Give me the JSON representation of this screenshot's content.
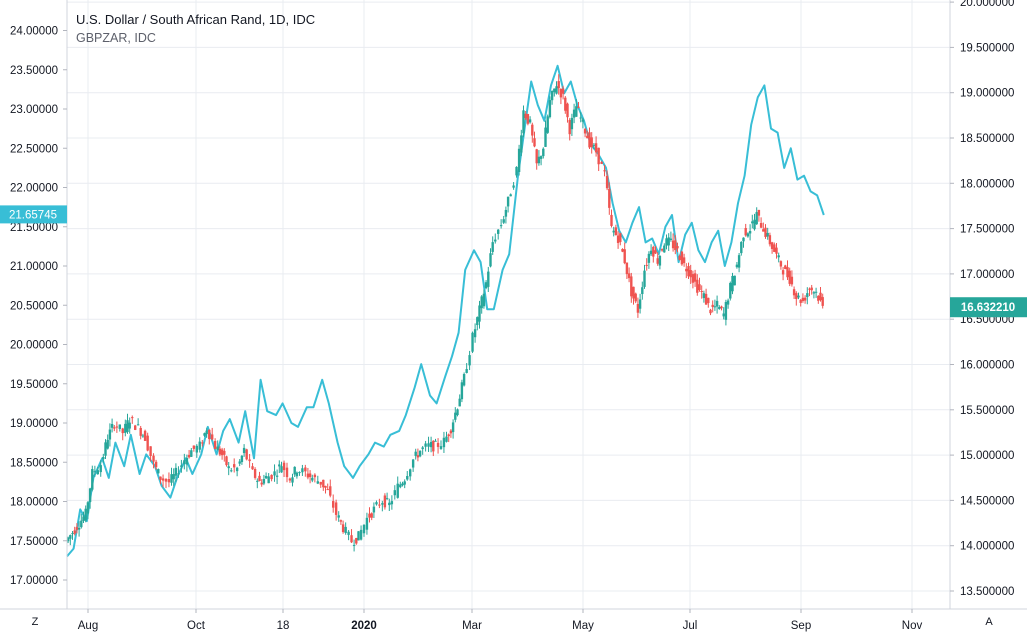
{
  "legend": {
    "title": "U.S. Dollar / South African Rand, 1D, IDC",
    "compare": "GBPZAR, IDC"
  },
  "buttons": {
    "left": "Z",
    "right": "A"
  },
  "colors": {
    "up": "#26a69a",
    "down": "#ef5350",
    "compare_line": "#38bed6",
    "grid": "#e9ecf1",
    "left_badge": "#38bed6",
    "right_badge": "#26a69a"
  },
  "chart_data": {
    "type": "line",
    "xlabels": [
      "Aug",
      "Oct",
      "18",
      "2020",
      "Mar",
      "May",
      "Jul",
      "Sep",
      "Nov"
    ],
    "x_bold": [
      "2020"
    ],
    "left_axis": {
      "ticks": [
        "17.00000",
        "17.50000",
        "18.00000",
        "18.50000",
        "19.00000",
        "19.50000",
        "20.00000",
        "20.50000",
        "21.00000",
        "21.50000",
        "22.00000",
        "22.50000",
        "23.00000",
        "23.50000",
        "24.00000"
      ],
      "ylim": [
        17.0,
        24.0
      ],
      "last_value": "21.65745",
      "last_value_num": 21.65745
    },
    "right_axis": {
      "ticks": [
        "13.500000",
        "14.000000",
        "14.500000",
        "15.000000",
        "15.500000",
        "16.000000",
        "16.500000",
        "17.000000",
        "17.500000",
        "18.000000",
        "18.500000",
        "19.000000",
        "19.500000",
        "20.000000"
      ],
      "ylim": [
        13.5,
        20.0
      ],
      "last_value": "16.632210",
      "last_value_num": 16.63221
    },
    "series": [
      {
        "name": "GBPZAR, IDC",
        "axis": "left",
        "style": "line",
        "points": [
          [
            0,
            17.3
          ],
          [
            3,
            17.4
          ],
          [
            6,
            17.9
          ],
          [
            9,
            17.75
          ],
          [
            12,
            18.3
          ],
          [
            16,
            18.55
          ],
          [
            19,
            18.3
          ],
          [
            22,
            18.75
          ],
          [
            26,
            18.45
          ],
          [
            29,
            18.85
          ],
          [
            33,
            18.35
          ],
          [
            36,
            18.6
          ],
          [
            40,
            18.45
          ],
          [
            43,
            18.2
          ],
          [
            47,
            18.05
          ],
          [
            50,
            18.3
          ],
          [
            54,
            18.55
          ],
          [
            57,
            18.35
          ],
          [
            61,
            18.6
          ],
          [
            64,
            18.95
          ],
          [
            68,
            18.6
          ],
          [
            71,
            18.9
          ],
          [
            74,
            19.05
          ],
          [
            78,
            18.75
          ],
          [
            81,
            19.15
          ],
          [
            85,
            18.55
          ],
          [
            88,
            19.55
          ],
          [
            91,
            19.15
          ],
          [
            95,
            19.1
          ],
          [
            98,
            19.25
          ],
          [
            102,
            19.0
          ],
          [
            105,
            18.95
          ],
          [
            109,
            19.2
          ],
          [
            112,
            19.2
          ],
          [
            116,
            19.55
          ],
          [
            119,
            19.25
          ],
          [
            123,
            18.75
          ],
          [
            126,
            18.45
          ],
          [
            130,
            18.3
          ],
          [
            133,
            18.45
          ],
          [
            137,
            18.6
          ],
          [
            140,
            18.75
          ],
          [
            144,
            18.7
          ],
          [
            147,
            18.85
          ],
          [
            151,
            18.9
          ],
          [
            154,
            19.1
          ],
          [
            158,
            19.45
          ],
          [
            161,
            19.75
          ],
          [
            165,
            19.35
          ],
          [
            168,
            19.25
          ],
          [
            172,
            19.6
          ],
          [
            175,
            19.85
          ],
          [
            178,
            20.15
          ],
          [
            181,
            20.95
          ],
          [
            185,
            21.2
          ],
          [
            188,
            21.05
          ],
          [
            191,
            20.45
          ],
          [
            194,
            20.45
          ],
          [
            198,
            20.95
          ],
          [
            201,
            21.15
          ],
          [
            205,
            22.15
          ],
          [
            208,
            22.75
          ],
          [
            211,
            23.35
          ],
          [
            214,
            23.05
          ],
          [
            217,
            22.85
          ],
          [
            220,
            23.3
          ],
          [
            223,
            23.55
          ],
          [
            226,
            23.2
          ],
          [
            229,
            23.35
          ],
          [
            232,
            23.05
          ],
          [
            235,
            22.85
          ],
          [
            238,
            22.55
          ],
          [
            241,
            22.45
          ],
          [
            245,
            22.25
          ],
          [
            248,
            21.8
          ],
          [
            251,
            21.45
          ],
          [
            254,
            21.3
          ],
          [
            257,
            21.55
          ],
          [
            260,
            21.75
          ],
          [
            263,
            21.3
          ],
          [
            266,
            21.35
          ],
          [
            269,
            21.15
          ],
          [
            272,
            21.5
          ],
          [
            275,
            21.65
          ],
          [
            278,
            21.05
          ],
          [
            281,
            21.4
          ],
          [
            284,
            21.55
          ],
          [
            287,
            21.2
          ],
          [
            290,
            21.05
          ],
          [
            293,
            21.3
          ],
          [
            296,
            21.45
          ],
          [
            299,
            21.0
          ],
          [
            302,
            21.3
          ],
          [
            305,
            21.8
          ],
          [
            308,
            22.15
          ],
          [
            311,
            22.8
          ],
          [
            314,
            23.15
          ],
          [
            317,
            23.3
          ],
          [
            320,
            22.75
          ],
          [
            323,
            22.7
          ],
          [
            326,
            22.25
          ],
          [
            329,
            22.5
          ],
          [
            332,
            22.1
          ],
          [
            335,
            22.15
          ],
          [
            338,
            21.95
          ],
          [
            341,
            21.9
          ],
          [
            344,
            21.65
          ]
        ]
      },
      {
        "name": "U.S. Dollar / South African Rand, 1D, IDC",
        "axis": "right",
        "style": "candles",
        "points": [
          [
            0,
            14.05
          ],
          [
            3,
            14.15
          ],
          [
            6,
            14.25
          ],
          [
            9,
            14.35
          ],
          [
            12,
            14.8
          ],
          [
            16,
            14.9
          ],
          [
            19,
            15.2
          ],
          [
            22,
            15.35
          ],
          [
            26,
            15.25
          ],
          [
            29,
            15.4
          ],
          [
            33,
            15.3
          ],
          [
            36,
            15.2
          ],
          [
            40,
            14.9
          ],
          [
            43,
            14.75
          ],
          [
            47,
            14.7
          ],
          [
            50,
            14.8
          ],
          [
            54,
            14.95
          ],
          [
            57,
            15.05
          ],
          [
            61,
            15.1
          ],
          [
            64,
            15.3
          ],
          [
            68,
            15.1
          ],
          [
            71,
            15.0
          ],
          [
            74,
            14.85
          ],
          [
            78,
            14.85
          ],
          [
            81,
            15.05
          ],
          [
            85,
            14.8
          ],
          [
            88,
            14.7
          ],
          [
            91,
            14.75
          ],
          [
            95,
            14.8
          ],
          [
            98,
            14.9
          ],
          [
            102,
            14.75
          ],
          [
            105,
            14.85
          ],
          [
            109,
            14.8
          ],
          [
            112,
            14.75
          ],
          [
            116,
            14.7
          ],
          [
            119,
            14.6
          ],
          [
            123,
            14.35
          ],
          [
            126,
            14.2
          ],
          [
            130,
            14.05
          ],
          [
            133,
            14.1
          ],
          [
            137,
            14.3
          ],
          [
            140,
            14.4
          ],
          [
            144,
            14.5
          ],
          [
            147,
            14.45
          ],
          [
            151,
            14.65
          ],
          [
            154,
            14.75
          ],
          [
            158,
            14.95
          ],
          [
            161,
            15.05
          ],
          [
            165,
            15.1
          ],
          [
            168,
            15.1
          ],
          [
            172,
            15.15
          ],
          [
            175,
            15.3
          ],
          [
            178,
            15.55
          ],
          [
            181,
            15.85
          ],
          [
            185,
            16.3
          ],
          [
            188,
            16.6
          ],
          [
            191,
            16.9
          ],
          [
            194,
            17.35
          ],
          [
            198,
            17.55
          ],
          [
            201,
            17.8
          ],
          [
            205,
            18.15
          ],
          [
            208,
            18.8
          ],
          [
            211,
            18.65
          ],
          [
            214,
            18.2
          ],
          [
            217,
            18.4
          ],
          [
            220,
            18.9
          ],
          [
            223,
            19.1
          ],
          [
            226,
            18.95
          ],
          [
            229,
            18.6
          ],
          [
            232,
            18.85
          ],
          [
            235,
            18.65
          ],
          [
            238,
            18.45
          ],
          [
            241,
            18.35
          ],
          [
            245,
            18.1
          ],
          [
            248,
            17.5
          ],
          [
            251,
            17.4
          ],
          [
            254,
            17.15
          ],
          [
            257,
            16.8
          ],
          [
            260,
            16.6
          ],
          [
            263,
            17.05
          ],
          [
            266,
            17.3
          ],
          [
            269,
            17.15
          ],
          [
            272,
            17.35
          ],
          [
            275,
            17.35
          ],
          [
            278,
            17.25
          ],
          [
            281,
            17.1
          ],
          [
            284,
            17.0
          ],
          [
            287,
            16.85
          ],
          [
            290,
            16.75
          ],
          [
            293,
            16.6
          ],
          [
            296,
            16.65
          ],
          [
            299,
            16.55
          ],
          [
            302,
            16.85
          ],
          [
            305,
            17.1
          ],
          [
            308,
            17.45
          ],
          [
            311,
            17.5
          ],
          [
            314,
            17.65
          ],
          [
            317,
            17.5
          ],
          [
            320,
            17.35
          ],
          [
            323,
            17.2
          ],
          [
            326,
            17.05
          ],
          [
            329,
            16.95
          ],
          [
            332,
            16.75
          ],
          [
            335,
            16.7
          ],
          [
            338,
            16.85
          ],
          [
            341,
            16.8
          ],
          [
            344,
            16.63
          ]
        ]
      }
    ],
    "grid": true
  }
}
